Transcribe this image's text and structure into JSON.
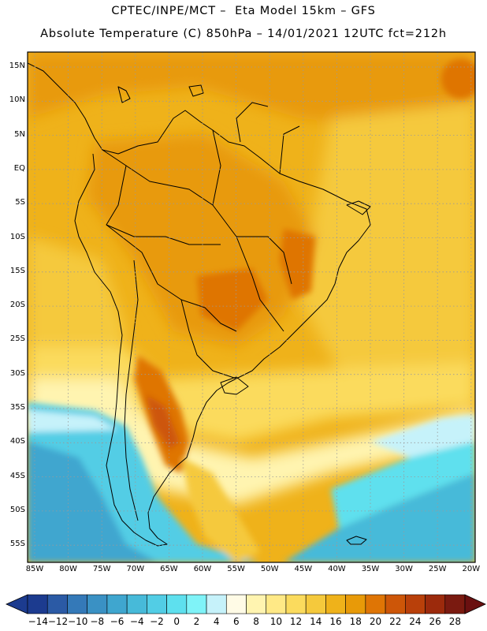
{
  "header": {
    "line1": "CPTEC/INPE/MCT –  Eta Model 15km – GFS",
    "line2": "Absolute Temperature (C) 850hPa – 14/01/2021 12UTC fct=212h"
  },
  "map": {
    "lat_labels": [
      "15N",
      "10N",
      "5N",
      "EQ",
      "5S",
      "10S",
      "15S",
      "20S",
      "25S",
      "30S",
      "35S",
      "40S",
      "45S",
      "50S",
      "55S"
    ],
    "lon_labels": [
      "85W",
      "80W",
      "75W",
      "70W",
      "65W",
      "60W",
      "55W",
      "50W",
      "45W",
      "40W",
      "35W",
      "30W",
      "25W",
      "20W"
    ],
    "grid": true
  },
  "colorbar": {
    "labels": [
      "-14",
      "-12",
      "-10",
      "-8",
      "-6",
      "-4",
      "-2",
      "0",
      "2",
      "4",
      "6",
      "8",
      "10",
      "12",
      "14",
      "16",
      "18",
      "20",
      "22",
      "24",
      "26",
      "28"
    ],
    "colors": [
      "#1c3b8f",
      "#2b5aa5",
      "#3479b8",
      "#3a91c4",
      "#3fa6cf",
      "#47bad9",
      "#52cde5",
      "#5ee0ee",
      "#7ff3f8",
      "#c6f2fa",
      "#fffbe6",
      "#fff4b0",
      "#ffe986",
      "#fbdb5d",
      "#f5c93c",
      "#efb21a",
      "#e89a08",
      "#df7505",
      "#cd5608",
      "#b9400a",
      "#9c2a0c",
      "#7a1a10"
    ]
  }
}
